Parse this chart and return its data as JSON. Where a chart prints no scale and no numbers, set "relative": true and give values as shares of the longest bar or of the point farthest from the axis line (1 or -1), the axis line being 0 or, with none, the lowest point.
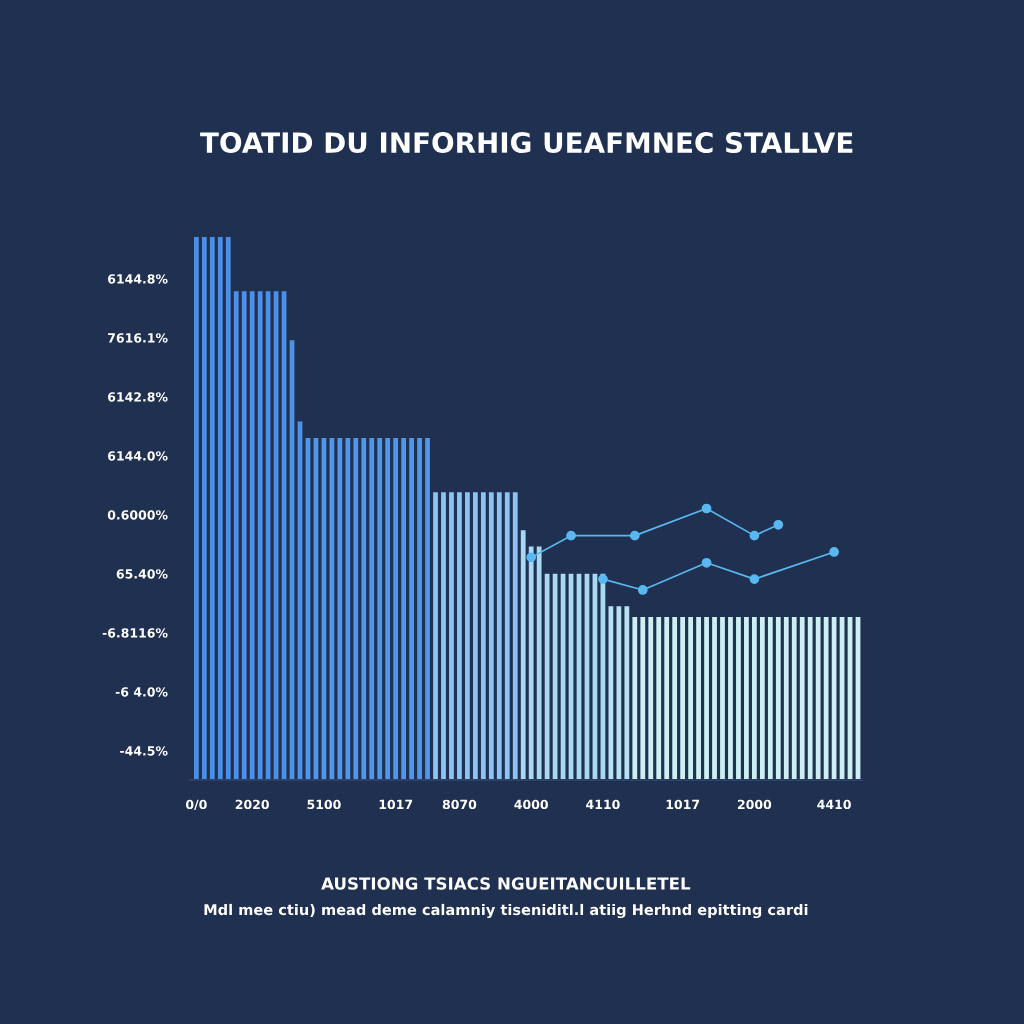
{
  "chart_data": {
    "type": "bar",
    "relative": true,
    "title": "TOATID DU INFORHIG UEAFMNEC STALLVE",
    "annotations": [
      "AUSTIONG TSIACS NGUEITANCUILLETEL",
      "Mdl mee ctiu) mead deme calamniy tiseniditl.l atiig Herhnd epitting cardi",
      "6144.8%",
      "7616.1%",
      "6142.8%",
      "6144.0%",
      "0.6000%",
      "65.40%",
      "-6.8116%",
      "-6 4.0%",
      "-44.5%"
    ],
    "categories": [
      "0/0",
      null,
      null,
      null,
      null,
      null,
      null,
      "2020",
      null,
      null,
      null,
      null,
      null,
      null,
      null,
      null,
      "5100",
      null,
      null,
      null,
      null,
      null,
      null,
      null,
      null,
      "1017",
      null,
      null,
      null,
      null,
      null,
      null,
      null,
      "8070",
      null,
      null,
      null,
      null,
      null,
      null,
      null,
      null,
      "4000",
      null,
      null,
      null,
      null,
      null,
      null,
      null,
      null,
      "4110",
      null,
      null,
      null,
      null,
      null,
      null,
      null,
      null,
      null,
      "1017",
      null,
      null,
      null,
      null,
      null,
      null,
      null,
      null,
      "2000",
      null,
      null,
      null,
      null,
      null,
      null,
      null,
      null,
      null,
      "4410",
      null,
      null,
      null
    ],
    "series": [
      {
        "values": [
          1.0,
          1.0,
          1.0,
          1.0,
          1.0,
          0.9,
          0.9,
          0.9,
          0.9,
          0.9,
          0.9,
          0.9,
          0.81,
          0.66,
          0.63,
          0.63,
          0.63,
          0.63,
          0.63,
          0.63,
          0.63,
          0.63,
          0.63,
          0.63,
          0.63,
          0.63,
          0.63,
          0.63,
          0.63,
          0.63,
          0.53,
          0.53,
          0.53,
          0.53,
          0.53,
          0.53,
          0.53,
          0.53,
          0.53,
          0.53,
          0.53,
          0.46,
          0.43,
          0.43,
          0.38,
          0.38,
          0.38,
          0.38,
          0.38,
          0.38,
          0.38,
          0.38,
          0.32,
          0.32,
          0.32,
          0.3,
          0.3,
          0.3,
          0.3,
          0.3,
          0.3,
          0.3,
          0.3,
          0.3,
          0.3,
          0.3,
          0.3,
          0.3,
          0.3,
          0.3,
          0.3,
          0.3,
          0.3,
          0.3,
          0.3,
          0.3,
          0.3,
          0.3,
          0.3,
          0.3,
          0.3,
          0.3,
          0.3,
          0.3
        ],
        "colors": [
          "#4a8ee6",
          "#4a8ee6",
          "#4a8ee6",
          "#4a8ee6",
          "#4a8ee6",
          "#4c90e8",
          "#4c90e8",
          "#4c90e8",
          "#4c90e8",
          "#4c90e8",
          "#4c90e8",
          "#4c90e8",
          "#4e92e8",
          "#4e92e8",
          "#5096ea",
          "#5096ea",
          "#5096ea",
          "#5096ea",
          "#5096ea",
          "#5096ea",
          "#5096ea",
          "#5096ea",
          "#5096ea",
          "#5096ea",
          "#5096ea",
          "#5096ea",
          "#5096ea",
          "#5096ea",
          "#5096ea",
          "#5096ea",
          "#8dc3f2",
          "#8dc3f2",
          "#8dc3f2",
          "#8dc3f2",
          "#8dc3f2",
          "#8dc3f2",
          "#8dc3f2",
          "#8dc3f2",
          "#8dc3f2",
          "#8dc3f2",
          "#8dc3f2",
          "#a9d8f3",
          "#a9d8f3",
          "#a9d8f3",
          "#a9d8f3",
          "#a9d8f3",
          "#a9d8f3",
          "#a9d8f3",
          "#a9d8f3",
          "#a9d8f3",
          "#a9d8f3",
          "#a9d8f3",
          "#b8e2f4",
          "#b8e2f4",
          "#b8e2f4",
          "#cdeff4",
          "#cdeff4",
          "#cdeff4",
          "#cdeff4",
          "#cdeff4",
          "#cdeff4",
          "#cdeff4",
          "#cdeff4",
          "#cdeff4",
          "#cdeff4",
          "#cdeff4",
          "#cdeff4",
          "#cdeff4",
          "#cdeff4",
          "#cdeff4",
          "#cdeff4",
          "#cdeff4",
          "#cdeff4",
          "#cdeff4",
          "#cdeff4",
          "#cdeff4",
          "#cdeff4",
          "#cdeff4",
          "#cdeff4",
          "#cdeff4",
          "#cdeff4",
          "#cdeff4",
          "#cdeff4",
          "#cdeff4"
        ]
      },
      {
        "type": "line",
        "color": "#5ab8f0",
        "values": [
          null,
          null,
          null,
          null,
          null,
          null,
          null,
          null,
          null,
          null,
          null,
          null,
          null,
          null,
          null,
          null,
          null,
          null,
          null,
          null,
          null,
          null,
          null,
          null,
          null,
          null,
          null,
          null,
          null,
          null,
          null,
          null,
          null,
          null,
          null,
          null,
          null,
          null,
          null,
          null,
          null,
          null,
          0.41,
          null,
          null,
          null,
          null,
          0.45,
          null,
          null,
          null,
          null,
          null,
          null,
          null,
          0.45,
          null,
          null,
          null,
          null,
          null,
          null,
          null,
          null,
          0.5,
          null,
          null,
          null,
          null,
          null,
          0.45,
          null,
          null,
          0.47,
          null,
          null,
          null,
          null,
          null,
          null,
          null,
          null,
          null,
          null
        ]
      },
      {
        "type": "line",
        "color": "#5ab8f0",
        "values": [
          null,
          null,
          null,
          null,
          null,
          null,
          null,
          null,
          null,
          null,
          null,
          null,
          null,
          null,
          null,
          null,
          null,
          null,
          null,
          null,
          null,
          null,
          null,
          null,
          null,
          null,
          null,
          null,
          null,
          null,
          null,
          null,
          null,
          null,
          null,
          null,
          null,
          null,
          null,
          null,
          null,
          null,
          null,
          null,
          null,
          null,
          null,
          null,
          null,
          null,
          null,
          0.37,
          null,
          null,
          null,
          null,
          0.35,
          null,
          null,
          null,
          null,
          null,
          null,
          null,
          0.4,
          null,
          null,
          null,
          null,
          null,
          0.37,
          null,
          null,
          null,
          null,
          null,
          null,
          null,
          null,
          null,
          0.42,
          null,
          null,
          null
        ]
      }
    ],
    "grid": false,
    "legend": false,
    "marker": "circle",
    "line_style": "solid"
  }
}
